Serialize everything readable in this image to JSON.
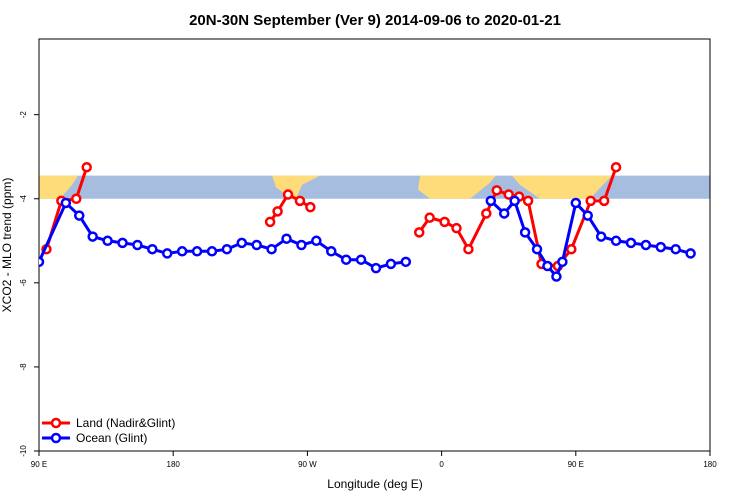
{
  "chart_data": {
    "type": "line",
    "title": "20N-30N September (Ver 9)   2014-09-06 to 2020-01-21",
    "xlabel": "Longitude (deg E)",
    "ylabel": "XCO2 - MLO trend (ppm)",
    "xlim": [
      90,
      540
    ],
    "ylim": [
      -10,
      -0.2
    ],
    "x_ticks": [
      {
        "value": 90,
        "label": "90 E"
      },
      {
        "value": 180,
        "label": "180"
      },
      {
        "value": 270,
        "label": "90 W"
      },
      {
        "value": 360,
        "label": "0"
      },
      {
        "value": 450,
        "label": "90 E"
      },
      {
        "value": 540,
        "label": "180"
      }
    ],
    "y_ticks": [
      -10,
      -8,
      -6,
      -4,
      -2
    ],
    "grid": false,
    "legend_position": "bottom-left",
    "map_band": {
      "y_range": [
        -4.0,
        -3.45
      ],
      "land_color": "#fddc79",
      "ocean_color": "#a7bddf"
    },
    "series": [
      {
        "name": "Land (Nadir&Glint)",
        "color": "#ff0000",
        "segments": [
          [
            [
              95,
              -5.2
            ],
            [
              105,
              -4.05
            ],
            [
              115,
              -4.0
            ],
            [
              122,
              -3.25
            ]
          ],
          [
            [
              245,
              -4.55
            ],
            [
              250,
              -4.3
            ],
            [
              257,
              -3.9
            ],
            [
              265,
              -4.05
            ],
            [
              272,
              -4.2
            ]
          ],
          [
            [
              345,
              -4.8
            ],
            [
              352,
              -4.45
            ],
            [
              362,
              -4.55
            ],
            [
              370,
              -4.7
            ],
            [
              378,
              -5.2
            ],
            [
              390,
              -4.35
            ],
            [
              397,
              -3.8
            ],
            [
              405,
              -3.9
            ],
            [
              412,
              -3.95
            ],
            [
              418,
              -4.05
            ],
            [
              427,
              -5.55
            ],
            [
              438,
              -5.6
            ],
            [
              447,
              -5.2
            ],
            [
              460,
              -4.05
            ],
            [
              469,
              -4.05
            ],
            [
              477,
              -3.25
            ]
          ]
        ]
      },
      {
        "name": "Ocean (Glint)",
        "color": "#0000ff",
        "segments": [
          [
            [
              90,
              -5.5
            ],
            [
              108,
              -4.1
            ],
            [
              117,
              -4.4
            ],
            [
              126,
              -4.9
            ],
            [
              136,
              -5.0
            ],
            [
              146,
              -5.05
            ],
            [
              156,
              -5.1
            ],
            [
              166,
              -5.2
            ],
            [
              176,
              -5.3
            ],
            [
              186,
              -5.25
            ],
            [
              196,
              -5.25
            ],
            [
              206,
              -5.25
            ],
            [
              216,
              -5.2
            ],
            [
              226,
              -5.05
            ],
            [
              236,
              -5.1
            ],
            [
              246,
              -5.2
            ],
            [
              256,
              -4.95
            ],
            [
              266,
              -5.1
            ],
            [
              276,
              -5.0
            ],
            [
              286,
              -5.25
            ],
            [
              296,
              -5.45
            ],
            [
              306,
              -5.45
            ],
            [
              316,
              -5.65
            ],
            [
              326,
              -5.55
            ],
            [
              336,
              -5.5
            ]
          ],
          [
            [
              393,
              -4.05
            ],
            [
              402,
              -4.35
            ],
            [
              409,
              -4.05
            ],
            [
              416,
              -4.8
            ],
            [
              424,
              -5.2
            ],
            [
              431,
              -5.6
            ],
            [
              437,
              -5.85
            ],
            [
              441,
              -5.5
            ],
            [
              450,
              -4.1
            ],
            [
              458,
              -4.4
            ],
            [
              467,
              -4.9
            ],
            [
              477,
              -5.0
            ],
            [
              487,
              -5.05
            ],
            [
              497,
              -5.1
            ],
            [
              507,
              -5.15
            ],
            [
              517,
              -5.2
            ],
            [
              527,
              -5.3
            ]
          ]
        ]
      }
    ]
  }
}
